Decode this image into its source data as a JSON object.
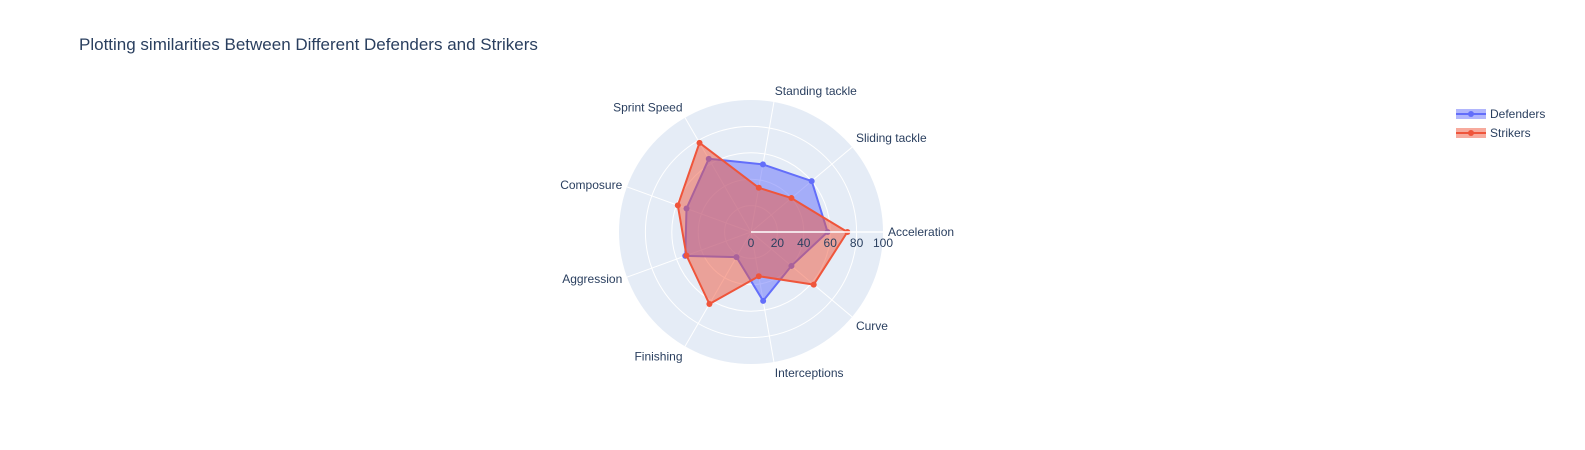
{
  "chart_data": {
    "type": "radar",
    "title": "Plotting similarities Between Different Defenders and Strikers",
    "categories": [
      "Acceleration",
      "Sliding tackle",
      "Standing tackle",
      "Sprint Speed",
      "Composure",
      "Aggression",
      "Finishing",
      "Interceptions",
      "Curve"
    ],
    "radial_range": [
      0,
      100
    ],
    "radial_ticks": [
      0,
      20,
      40,
      60,
      80,
      100
    ],
    "radial_tick_labels": [
      "0",
      "20",
      "40",
      "60",
      "80",
      "100"
    ],
    "grid": true,
    "legend_position": "top-right",
    "series": [
      {
        "name": "Defenders",
        "color": "#636efa",
        "values": [
          58,
          60,
          52,
          64,
          52,
          53,
          22,
          53,
          40
        ]
      },
      {
        "name": "Strikers",
        "color": "#ef553b",
        "values": [
          73,
          40,
          34,
          78,
          59,
          52,
          63,
          34,
          62
        ]
      }
    ]
  }
}
